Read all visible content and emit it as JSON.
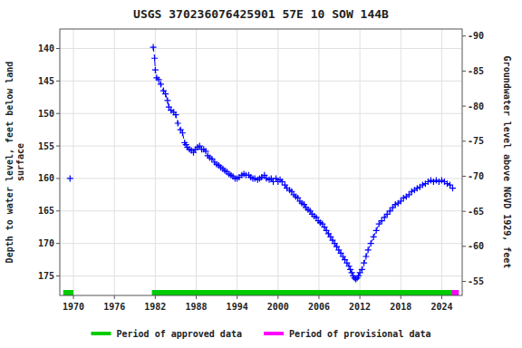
{
  "chart_data": {
    "type": "line",
    "title": "USGS 370236076425901 57E 10 SOW 144B",
    "ylabel": "Depth to water level, feet below land\nsurface",
    "y2label": "Groundwater level above NGVD 1929, feet",
    "xlim": [
      1968,
      2027
    ],
    "ylim": [
      178,
      137
    ],
    "y2lim": [
      -53,
      -91
    ],
    "xticks": [
      1970,
      1976,
      1982,
      1988,
      1994,
      2000,
      2006,
      2012,
      2018,
      2024
    ],
    "yticks": [
      140,
      145,
      150,
      155,
      160,
      165,
      170,
      175
    ],
    "y2ticks": [
      -55,
      -60,
      -65,
      -70,
      -75,
      -80,
      -85,
      -90
    ],
    "grid": true,
    "legend": "bottom",
    "series": [
      {
        "type": "line",
        "color": "#0000ff",
        "line_style": "dashed",
        "marker": "plus",
        "x": [
          1981.7,
          1981.9,
          1982.0,
          1982.2,
          1982.5,
          1982.8,
          1983.2,
          1983.5,
          1983.8,
          1984.0,
          1984.3,
          1984.7,
          1985.0,
          1985.3,
          1985.7,
          1986.0,
          1986.3,
          1986.5,
          1986.7,
          1987.0,
          1987.3,
          1987.6,
          1987.9,
          1988.2,
          1988.5,
          1988.8,
          1989.1,
          1989.4,
          1989.7,
          1990.0,
          1990.3,
          1990.7,
          1991.0,
          1991.3,
          1991.6,
          1991.9,
          1992.2,
          1992.5,
          1992.8,
          1993.1,
          1993.4,
          1993.7,
          1994.0,
          1994.3,
          1994.7,
          1995.0,
          1995.3,
          1995.7,
          1996.0,
          1996.3,
          1996.6,
          1997.0,
          1997.3,
          1997.6,
          1998.0,
          1998.3,
          1998.7,
          1999.0,
          1999.3,
          1999.7,
          2000.0,
          2000.3,
          2000.6,
          2001.0,
          2001.3,
          2001.7,
          2002.0,
          2002.3,
          2002.6,
          2002.9,
          2003.2,
          2003.5,
          2003.8,
          2004.1,
          2004.4,
          2004.7,
          2005.0,
          2005.3,
          2005.6,
          2005.9,
          2006.2,
          2006.5,
          2006.8,
          2007.1,
          2007.4,
          2007.7,
          2008.0,
          2008.3,
          2008.6,
          2008.9,
          2009.2,
          2009.5,
          2009.8,
          2010.1,
          2010.4,
          2010.6,
          2010.8,
          2011.0,
          2011.2,
          2011.4,
          2011.6,
          2011.8,
          2012.0,
          2012.3,
          2012.6,
          2012.9,
          2013.2,
          2013.6,
          2014.0,
          2014.4,
          2014.8,
          2015.2,
          2015.6,
          2016.0,
          2016.4,
          2016.8,
          2017.2,
          2017.6,
          2018.0,
          2018.4,
          2018.8,
          2019.2,
          2019.6,
          2020.0,
          2020.4,
          2020.8,
          2021.2,
          2021.6,
          2022.0,
          2022.4,
          2022.8,
          2023.2,
          2023.6,
          2024.0,
          2024.4,
          2024.8,
          2025.2,
          2025.6
        ],
        "values": [
          139.8,
          141.5,
          143.3,
          144.5,
          144.8,
          145.5,
          146.5,
          147.0,
          148.0,
          149.0,
          149.5,
          149.8,
          150.2,
          151.5,
          152.5,
          153.0,
          154.5,
          154.8,
          155.2,
          155.5,
          155.7,
          156.0,
          155.5,
          155.2,
          155.0,
          155.5,
          155.5,
          155.8,
          156.5,
          156.8,
          157.0,
          157.5,
          157.8,
          158.0,
          158.3,
          158.5,
          158.8,
          159.0,
          159.3,
          159.5,
          159.7,
          160.0,
          160.0,
          159.8,
          159.5,
          159.3,
          159.5,
          159.5,
          159.8,
          160.0,
          160.0,
          160.2,
          160.0,
          159.8,
          159.5,
          160.0,
          160.2,
          160.0,
          160.5,
          160.0,
          160.5,
          160.2,
          160.5,
          161.0,
          161.5,
          161.8,
          162.0,
          162.5,
          162.8,
          163.0,
          163.5,
          163.8,
          164.0,
          164.5,
          164.8,
          165.0,
          165.5,
          165.8,
          166.0,
          166.5,
          166.8,
          167.0,
          167.5,
          168.0,
          168.5,
          169.0,
          169.5,
          170.0,
          170.5,
          171.0,
          171.5,
          172.0,
          172.5,
          173.0,
          173.5,
          174.0,
          174.5,
          175.0,
          175.3,
          175.5,
          175.3,
          175.0,
          174.5,
          174.0,
          173.0,
          172.0,
          171.0,
          170.0,
          169.0,
          168.0,
          167.0,
          166.5,
          166.0,
          165.5,
          165.0,
          164.5,
          164.0,
          163.8,
          163.5,
          163.0,
          162.8,
          162.5,
          162.0,
          161.8,
          161.5,
          161.3,
          161.0,
          160.8,
          160.5,
          160.3,
          160.5,
          160.3,
          160.5,
          160.3,
          160.5,
          160.8,
          161.0,
          161.5
        ]
      },
      {
        "type": "scatter",
        "color": "#0000ff",
        "marker": "plus",
        "x": [
          1969.5
        ],
        "values": [
          160.0
        ]
      },
      {
        "type": "period",
        "name": "Period of approved data",
        "color": "#00cc00",
        "start": [
          1981.5,
          1968.5
        ],
        "end": [
          2026.5,
          1970.0
        ]
      },
      {
        "type": "period",
        "name": "Period of provisional data",
        "color": "#ff00ff",
        "start": [
          2025.5
        ],
        "end": [
          2026.5
        ]
      }
    ]
  }
}
